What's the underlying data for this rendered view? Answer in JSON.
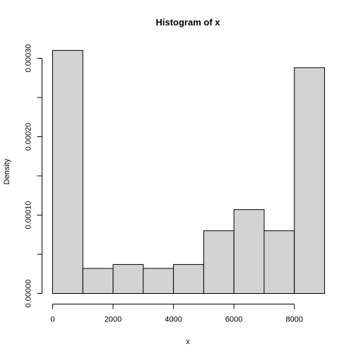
{
  "chart_data": {
    "type": "bar",
    "title": "Histogram of x",
    "xlabel": "x",
    "ylabel": "Density",
    "bins": [
      {
        "start": 0,
        "end": 1000,
        "density": 0.00031
      },
      {
        "start": 1000,
        "end": 2000,
        "density": 3.2e-05
      },
      {
        "start": 2000,
        "end": 3000,
        "density": 3.7e-05
      },
      {
        "start": 3000,
        "end": 4000,
        "density": 3.2e-05
      },
      {
        "start": 4000,
        "end": 5000,
        "density": 3.7e-05
      },
      {
        "start": 5000,
        "end": 6000,
        "density": 8e-05
      },
      {
        "start": 6000,
        "end": 7000,
        "density": 0.000107
      },
      {
        "start": 7000,
        "end": 8000,
        "density": 8e-05
      },
      {
        "start": 8000,
        "end": 9000,
        "density": 0.000288
      }
    ],
    "xlim": [
      0,
      9000
    ],
    "ylim": [
      0,
      0.0003
    ],
    "x_ticks": [
      0,
      2000,
      4000,
      6000,
      8000
    ],
    "x_tick_labels": [
      "0",
      "2000",
      "4000",
      "6000",
      "8000"
    ],
    "y_ticks": [
      0,
      5e-05,
      0.0001,
      0.00015,
      0.0002,
      0.00025,
      0.0003
    ],
    "y_tick_labels": [
      "0.00000",
      "",
      "0.00010",
      "",
      "0.00020",
      "",
      "0.00030"
    ],
    "grid": false,
    "legend": "none"
  }
}
